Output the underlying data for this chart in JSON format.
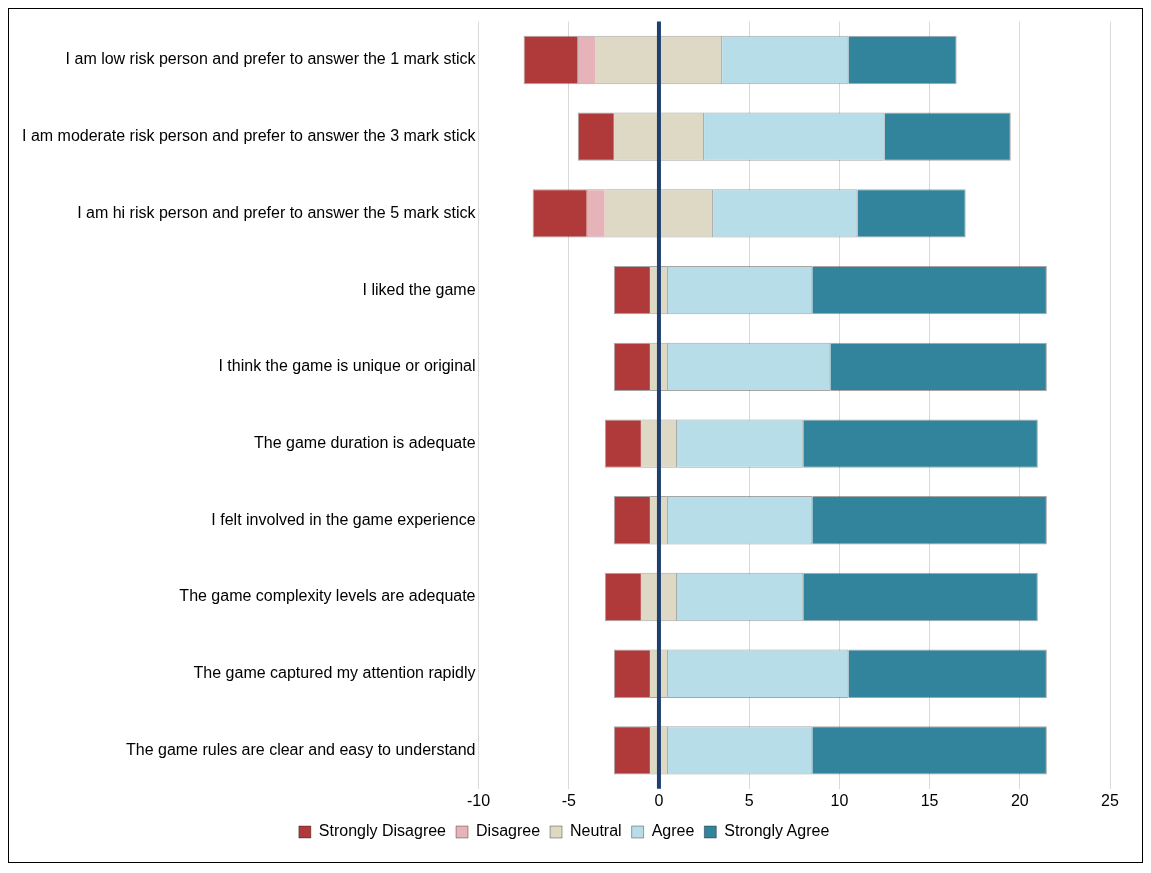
{
  "chart_data": {
    "type": "bar",
    "orientation": "horizontal",
    "categories": [
      "I am low risk person and prefer to answer the 1 mark stick",
      "I am moderate risk person and prefer to answer the 3 mark stick",
      "I am hi risk person and prefer to answer the 5 mark stick",
      "I liked the game",
      "I think the game is unique or original",
      "The game duration is adequate",
      "I felt involved in the game experience",
      "The game complexity levels are adequate",
      "The game captured my attention rapidly",
      "The game rules are clear and easy to understand"
    ],
    "series": [
      {
        "name": "Strongly Disagree",
        "color": "#b03a3a",
        "base": [
          -7.5,
          -4.5,
          -7,
          -2.5,
          -2.5,
          -3,
          -2.5,
          -3,
          -2.5,
          -2.5
        ],
        "values": [
          3,
          2,
          3,
          2,
          2,
          2,
          2,
          2,
          2,
          2
        ]
      },
      {
        "name": "Disagree",
        "color": "#e6b4b8",
        "base": [
          -4.5,
          null,
          -4,
          null,
          null,
          null,
          null,
          null,
          null,
          null
        ],
        "values": [
          1,
          null,
          1,
          null,
          null,
          null,
          null,
          null,
          null,
          null
        ]
      },
      {
        "name": "Neutral",
        "color": "#ddd9c4",
        "base": [
          -3.5,
          -2.5,
          -3,
          -0.5,
          -0.5,
          -1,
          -0.5,
          -1,
          -0.5,
          -0.5
        ],
        "values": [
          7,
          5,
          6,
          1,
          1,
          2,
          1,
          2,
          1,
          1
        ]
      },
      {
        "name": "Agree",
        "color": "#b7dde8",
        "base": [
          3.5,
          2.5,
          3,
          0.5,
          0.5,
          1,
          0.5,
          1,
          0.5,
          0.5
        ],
        "values": [
          7,
          10,
          8,
          8,
          9,
          7,
          8,
          7,
          10,
          8
        ]
      },
      {
        "name": "Strongly Agree",
        "color": "#31849b",
        "base": [
          10.5,
          12.5,
          11,
          8.5,
          9.5,
          8,
          8.5,
          8,
          10.5,
          8.5
        ],
        "values": [
          6,
          7,
          6,
          13,
          12,
          13,
          13,
          13,
          11,
          13
        ]
      }
    ],
    "xlim": [
      -10,
      25
    ],
    "xticks": [
      -10,
      -5,
      0,
      5,
      10,
      15,
      20,
      25
    ],
    "ref_lines": [
      {
        "axis": "x",
        "value": 0,
        "color": "#1f3f6e"
      }
    ],
    "grid": "x",
    "legend": "bottom"
  }
}
